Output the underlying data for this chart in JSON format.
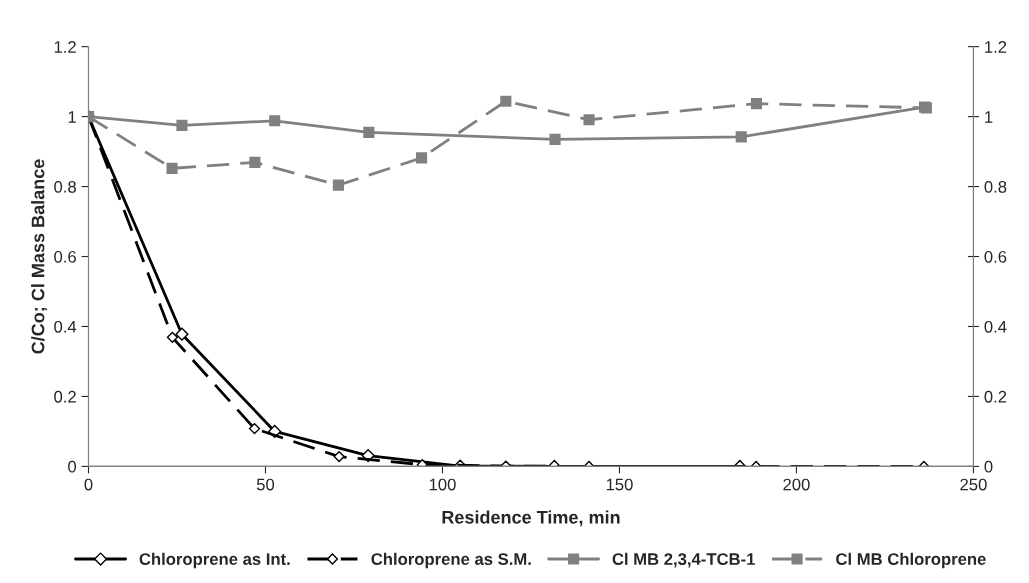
{
  "chart_data": {
    "type": "line",
    "xlabel": "Residence Time, min",
    "ylabel": "C/Co; Cl Mass Balance",
    "xlim": [
      0,
      250
    ],
    "xticks": [
      0,
      50,
      100,
      150,
      200,
      250
    ],
    "ylim": [
      0,
      1.2
    ],
    "yticks": [
      0,
      0.2,
      0.4,
      0.6,
      0.8,
      1,
      1.2
    ],
    "y2lim": [
      0,
      1.2
    ],
    "y2ticks": [
      0,
      0.2,
      0.4,
      0.6,
      0.8,
      1,
      1.2
    ],
    "grid": false,
    "legend": "bottom",
    "series": [
      {
        "name": "Chloroprene as Int.",
        "color": "#000000",
        "marker": "diamond",
        "line_style": "solid",
        "x": [
          0,
          26.4,
          52.6,
          79,
          105,
          131.6,
          184
        ],
        "values": [
          1,
          0.378,
          0.1,
          0.031,
          0.001,
          0,
          0
        ]
      },
      {
        "name": "Chloroprene as S.M.",
        "color": "#000000",
        "marker": "diamond",
        "line_style": "dashed",
        "x": [
          0,
          23.7,
          46.9,
          70.8,
          94.3,
          117.9,
          141.4,
          188.6,
          236
        ],
        "values": [
          1,
          0.369,
          0.108,
          0.028,
          0.005,
          0.001,
          0,
          0,
          0
        ]
      },
      {
        "name": "Cl MB 2,3,4-TCB-1",
        "color": "#808080",
        "marker": "square",
        "line_style": "solid",
        "x": [
          0,
          26.4,
          52.6,
          79.2,
          131.8,
          184.4,
          236.2
        ],
        "values": [
          1,
          0.975,
          0.988,
          0.955,
          0.935,
          0.942,
          1.027
        ]
      },
      {
        "name": "Cl MB Chloroprene",
        "color": "#808080",
        "marker": "square",
        "line_style": "dashed",
        "x": [
          0,
          23.6,
          47,
          70.6,
          94.1,
          117.9,
          141.4,
          188.7,
          236.7
        ],
        "values": [
          1,
          0.852,
          0.869,
          0.804,
          0.882,
          1.044,
          0.991,
          1.037,
          1.025
        ]
      }
    ]
  }
}
